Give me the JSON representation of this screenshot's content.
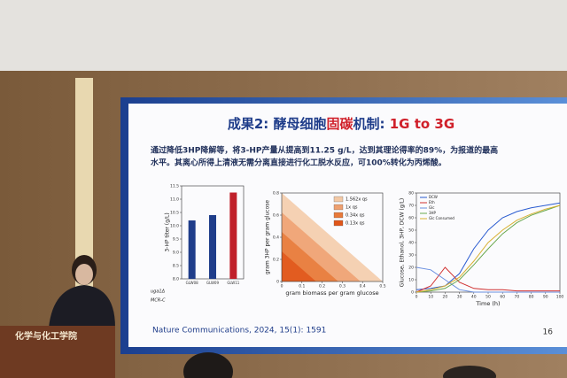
{
  "slide": {
    "title": [
      {
        "text": "成果2: 酵母细胞",
        "color": "#1f3d8a"
      },
      {
        "text": "固碳",
        "color": "#d0202a"
      },
      {
        "text": "机制: ",
        "color": "#1f3d8a"
      },
      {
        "text": "1G to 3G",
        "color": "#d0202a"
      }
    ],
    "body": [
      "通过降低3HP降解等，将3-HP产量从提高到11.25 g/L，达到其理论得率的89%，为报道的最高",
      "水平。其离心所得上清液无需分离直接进行化工脱水反应，可100%转化为丙烯酸。"
    ],
    "citation": "Nature Communications, 2024, 15(1): 1591",
    "page": "16"
  },
  "podium": "化学与化工学院",
  "chart_data": [
    {
      "type": "bar",
      "ylabel": "3-HP titer (g/L)",
      "categories": [
        "GLW08",
        "GLW09",
        "GLW11"
      ],
      "values": [
        10.2,
        10.4,
        11.25
      ],
      "colors": [
        "#1f3d8a",
        "#1f3d8a",
        "#c0202a"
      ],
      "ylim": [
        8,
        11.5
      ],
      "yticks": [
        {
          "value": 8,
          "label": "8.0"
        },
        {
          "value": 8.5,
          "label": "8.5"
        },
        {
          "value": 9,
          "label": "9.0"
        },
        {
          "value": 9.5,
          "label": "9.5"
        },
        {
          "value": 10,
          "label": "10.0"
        },
        {
          "value": 10.5,
          "label": "10.5"
        },
        {
          "value": 11,
          "label": "11.0"
        },
        {
          "value": 11.5,
          "label": "11.5"
        }
      ],
      "row_labels": [
        "uga1Δ",
        "MCR-C"
      ]
    },
    {
      "type": "area",
      "xlabel": "gram biomass per gram glucose",
      "ylabel": "gram 3HP per gram glucose",
      "xlim": [
        0,
        0.5
      ],
      "ylim": [
        0,
        0.8
      ],
      "xticks": [
        0,
        0.1,
        0.2,
        0.3,
        0.4,
        0.5
      ],
      "yticks": [
        0,
        0.2,
        0.4,
        0.6,
        0.8
      ],
      "series": [
        {
          "name": "1.562x qs",
          "color": "#f3c9a6"
        },
        {
          "name": "1x qs",
          "color": "#eea070"
        },
        {
          "name": "0.34x qs",
          "color": "#e87a3a"
        },
        {
          "name": "0.13x qs",
          "color": "#e0561a"
        }
      ]
    },
    {
      "type": "line",
      "xlabel": "Time (h)",
      "ylabel": "Glucose, Ethanol, 3HP, DCW (g/L)",
      "xlim": [
        0,
        100
      ],
      "ylim": [
        0,
        80
      ],
      "xticks": [
        0,
        10,
        20,
        30,
        40,
        50,
        60,
        70,
        80,
        90,
        100
      ],
      "yticks": [
        0,
        10,
        20,
        30,
        40,
        50,
        60,
        70,
        80
      ],
      "x": [
        0,
        10,
        20,
        30,
        40,
        50,
        60,
        70,
        80,
        90,
        100
      ],
      "series": [
        {
          "name": "DCW",
          "color": "#2a5bd0",
          "values": [
            2,
            3,
            5,
            15,
            35,
            50,
            60,
            65,
            68,
            70,
            72
          ]
        },
        {
          "name": "Eth",
          "color": "#d03030",
          "values": [
            0,
            5,
            20,
            8,
            3,
            2,
            2,
            1,
            1,
            1,
            1
          ]
        },
        {
          "name": "Glc",
          "color": "#6a8fe0",
          "values": [
            20,
            18,
            10,
            2,
            0,
            0,
            0,
            0,
            0,
            0,
            0
          ]
        },
        {
          "name": "3HP",
          "color": "#6aa84f",
          "values": [
            0,
            1,
            3,
            10,
            22,
            35,
            47,
            56,
            62,
            66,
            70
          ]
        },
        {
          "name": "Glc Consumed",
          "color": "#d8b030",
          "values": [
            0,
            2,
            5,
            12,
            25,
            40,
            50,
            58,
            63,
            67,
            70
          ]
        }
      ]
    }
  ]
}
